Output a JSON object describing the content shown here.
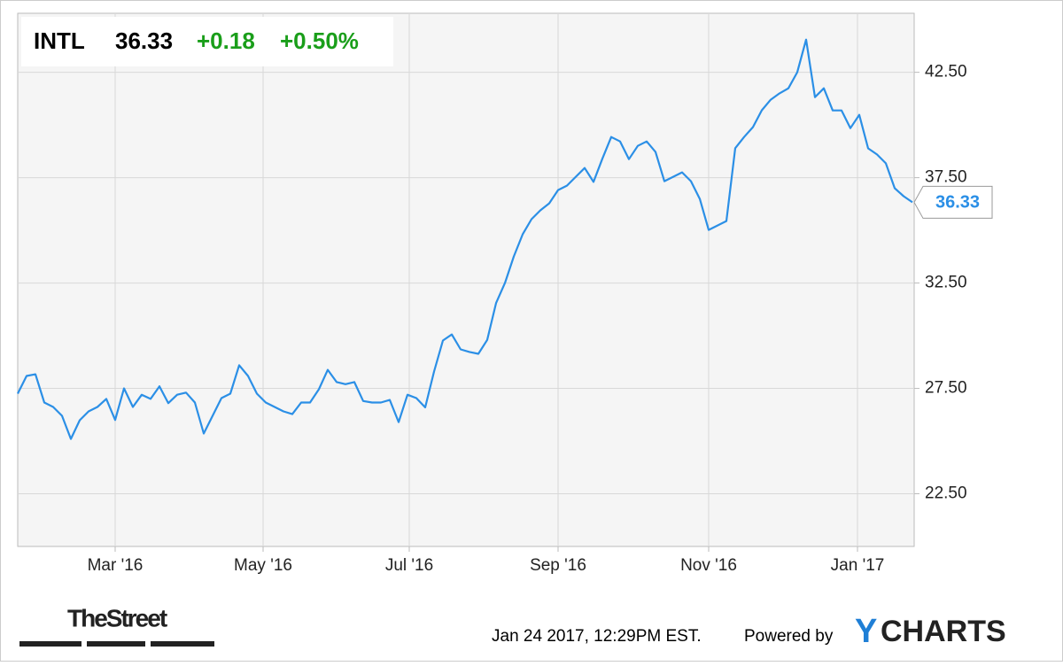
{
  "chart_data": {
    "type": "line",
    "header": {
      "ticker": "INTL",
      "price": "36.33",
      "change": "+0.18",
      "change_percent": "+0.50%"
    },
    "timestamp": "Jan 24 2017, 12:29PM EST.",
    "powered_by": "Powered by",
    "brand_left": "TheStreet",
    "brand_right_initial": "Y",
    "brand_right_rest": "CHARTS",
    "color": "#2b8fe6",
    "grid": true,
    "values": [
      27.25,
      28.09,
      28.17,
      26.83,
      26.62,
      26.2,
      25.1,
      25.99,
      26.41,
      26.62,
      27.0,
      26.0,
      27.5,
      26.62,
      27.2,
      27.0,
      27.6,
      26.8,
      27.2,
      27.3,
      26.83,
      25.36,
      26.2,
      27.04,
      27.25,
      28.6,
      28.09,
      27.25,
      26.83,
      26.62,
      26.41,
      26.28,
      26.83,
      26.83,
      27.46,
      28.38,
      27.8,
      27.7,
      27.8,
      26.9,
      26.83,
      26.83,
      26.95,
      25.9,
      27.2,
      27.04,
      26.6,
      28.3,
      29.77,
      30.06,
      29.35,
      29.23,
      29.14,
      29.8,
      31.55,
      32.5,
      33.76,
      34.81,
      35.53,
      35.95,
      36.28,
      36.91,
      37.12,
      37.54,
      37.96,
      37.3,
      38.4,
      39.43,
      39.22,
      38.38,
      39.01,
      39.22,
      38.72,
      37.33,
      37.54,
      37.75,
      37.33,
      36.49,
      35.02,
      35.23,
      35.44,
      38.9,
      39.43,
      39.9,
      40.7,
      41.2,
      41.5,
      41.74,
      42.5,
      44.05,
      41.32,
      41.74,
      40.69,
      40.69,
      39.85,
      40.48,
      38.89,
      38.6,
      38.18,
      37.0,
      36.62,
      36.33
    ],
    "xlim": [
      0,
      101.2
    ],
    "xticks": [
      {
        "value": 11,
        "label": "Mar '16"
      },
      {
        "value": 27.7,
        "label": "May '16"
      },
      {
        "value": 44.2,
        "label": "Jul '16"
      },
      {
        "value": 61,
        "label": "Sep '16"
      },
      {
        "value": 78,
        "label": "Nov '16"
      },
      {
        "value": 94.8,
        "label": "Jan '17"
      }
    ],
    "ylim": [
      20,
      45.3
    ],
    "yticks": [
      {
        "value": 22.5,
        "label": "22.50"
      },
      {
        "value": 27.5,
        "label": "27.50"
      },
      {
        "value": 32.5,
        "label": "32.50"
      },
      {
        "value": 37.5,
        "label": "37.50"
      },
      {
        "value": 42.5,
        "label": "42.50"
      }
    ]
  }
}
